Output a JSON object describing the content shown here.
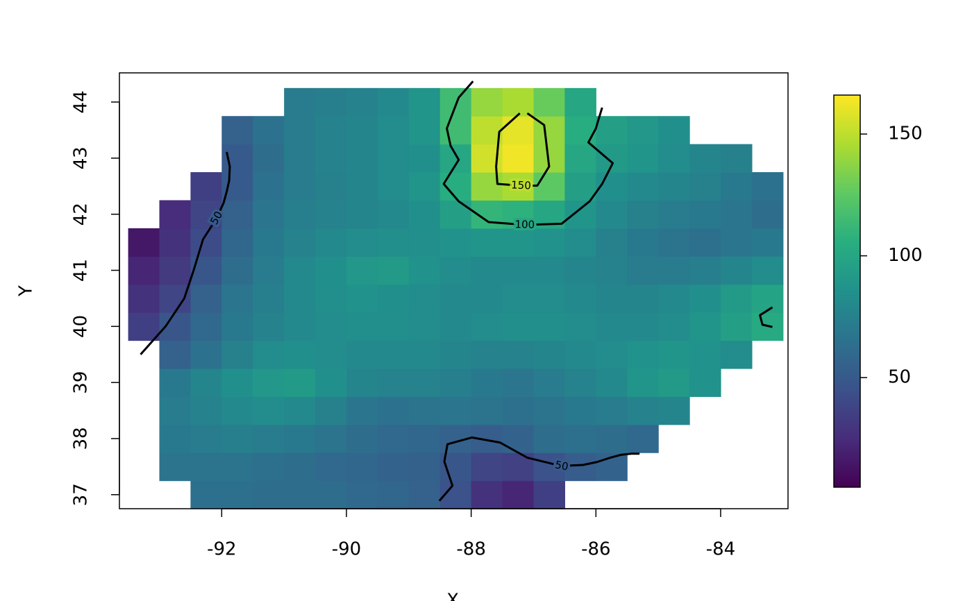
{
  "chart_data": {
    "type": "heatmap",
    "x_label": "X",
    "y_label": "Y",
    "xlim": [
      -93.64,
      -82.92
    ],
    "ylim": [
      36.75,
      44.52
    ],
    "xticks": [
      -92,
      -90,
      -88,
      -86,
      -84
    ],
    "yticks": [
      37,
      38,
      39,
      40,
      41,
      42,
      43,
      44
    ],
    "zlim": [
      5,
      166
    ],
    "zticks": [
      50,
      100,
      150
    ],
    "colorscale": [
      "#440154",
      "#472d7b",
      "#3b528b",
      "#2c728e",
      "#21918c",
      "#28ae80",
      "#5ec962",
      "#addc30",
      "#fde725"
    ],
    "x": [
      -93.25,
      -92.75,
      -92.25,
      -91.75,
      -91.25,
      -90.75,
      -90.25,
      -89.75,
      -89.25,
      -88.75,
      -88.25,
      -87.75,
      -87.25,
      -86.75,
      -86.25,
      -85.75,
      -85.25,
      -84.75,
      -84.25,
      -83.75,
      -83.25
    ],
    "y": [
      37.0,
      37.5,
      38.0,
      38.5,
      39.0,
      39.5,
      40.0,
      40.5,
      41.0,
      41.5,
      42.0,
      42.5,
      43.0,
      43.5,
      44.0
    ],
    "z": [
      [
        null,
        null,
        64,
        64,
        62,
        62,
        62,
        60,
        58,
        55,
        45,
        28,
        22,
        35,
        null,
        null,
        null,
        null,
        null,
        null,
        null
      ],
      [
        null,
        66,
        66,
        66,
        64,
        62,
        60,
        58,
        56,
        54,
        48,
        38,
        36,
        45,
        52,
        56,
        null,
        null,
        null,
        null,
        null
      ],
      [
        null,
        70,
        72,
        74,
        72,
        70,
        66,
        62,
        60,
        58,
        55,
        52,
        56,
        62,
        64,
        62,
        60,
        null,
        null,
        null,
        null
      ],
      [
        null,
        72,
        76,
        80,
        82,
        80,
        75,
        68,
        65,
        66,
        68,
        66,
        64,
        66,
        70,
        72,
        76,
        78,
        null,
        null,
        null
      ],
      [
        null,
        70,
        78,
        85,
        90,
        92,
        85,
        78,
        76,
        76,
        74,
        70,
        68,
        72,
        76,
        80,
        88,
        92,
        86,
        null,
        null
      ],
      [
        null,
        55,
        65,
        75,
        82,
        85,
        82,
        80,
        80,
        80,
        78,
        76,
        76,
        78,
        80,
        82,
        86,
        88,
        86,
        82,
        null
      ],
      [
        35,
        48,
        60,
        70,
        76,
        80,
        82,
        84,
        84,
        82,
        80,
        82,
        84,
        84,
        82,
        80,
        80,
        82,
        88,
        95,
        102
      ],
      [
        28,
        38,
        55,
        68,
        74,
        80,
        84,
        86,
        85,
        82,
        80,
        80,
        82,
        82,
        80,
        78,
        78,
        80,
        85,
        92,
        98
      ],
      [
        22,
        32,
        48,
        62,
        72,
        80,
        85,
        90,
        92,
        86,
        82,
        80,
        80,
        80,
        78,
        76,
        72,
        72,
        74,
        78,
        82
      ],
      [
        15,
        28,
        42,
        58,
        70,
        76,
        80,
        82,
        84,
        84,
        86,
        88,
        88,
        86,
        82,
        75,
        70,
        66,
        64,
        68,
        70
      ],
      [
        null,
        25,
        38,
        55,
        68,
        74,
        76,
        78,
        80,
        85,
        95,
        110,
        108,
        100,
        88,
        80,
        75,
        72,
        70,
        68,
        62
      ],
      [
        null,
        null,
        35,
        50,
        65,
        72,
        75,
        78,
        82,
        88,
        105,
        140,
        145,
        125,
        95,
        85,
        80,
        78,
        75,
        70,
        65
      ],
      [
        null,
        null,
        null,
        50,
        62,
        72,
        76,
        78,
        82,
        85,
        100,
        155,
        163,
        140,
        100,
        92,
        88,
        82,
        78,
        75,
        null
      ],
      [
        null,
        null,
        null,
        55,
        65,
        72,
        76,
        78,
        82,
        88,
        115,
        150,
        160,
        140,
        105,
        95,
        90,
        85,
        null,
        null,
        null
      ],
      [
        null,
        null,
        null,
        null,
        null,
        72,
        74,
        76,
        80,
        88,
        115,
        140,
        145,
        128,
        100,
        null,
        null,
        null,
        null,
        null,
        null
      ]
    ],
    "contours": [
      {
        "level": 50,
        "labeled": true,
        "x": [
          -91.92,
          -91.87,
          -91.88,
          -91.92,
          -91.97,
          -92.08,
          -92.3,
          -92.45,
          -92.6,
          -92.9,
          -93.3
        ],
        "y": [
          43.11,
          42.85,
          42.6,
          42.4,
          42.2,
          41.93,
          41.55,
          41.0,
          40.5,
          40.0,
          39.5
        ]
      },
      {
        "level": 100,
        "labeled": true,
        "x": [
          -87.97,
          -88.2,
          -88.39,
          -88.33,
          -88.2,
          -88.44,
          -88.2,
          -87.72,
          -87.14,
          -86.55,
          -86.1,
          -85.9,
          -85.73,
          -86.12,
          -86.0,
          -85.95,
          -85.9
        ],
        "y": [
          44.37,
          44.08,
          43.53,
          43.22,
          42.97,
          42.54,
          42.23,
          41.86,
          41.81,
          41.83,
          42.23,
          42.54,
          42.91,
          43.28,
          43.53,
          43.72,
          43.9
        ]
      },
      {
        "level": 150,
        "labeled": true,
        "x": [
          -87.22,
          -87.55,
          -87.6,
          -87.58,
          -87.2,
          -86.94,
          -86.75,
          -86.83,
          -87.1
        ],
        "y": [
          43.8,
          43.47,
          42.85,
          42.54,
          42.51,
          42.51,
          42.85,
          43.59,
          43.8
        ]
      },
      {
        "level": 50,
        "labeled": true,
        "x": [
          -88.51,
          -88.3,
          -88.43,
          -88.38,
          -87.99,
          -87.54,
          -87.1,
          -86.55,
          -86.41,
          -86.21,
          -85.99,
          -85.77,
          -85.6,
          -85.43,
          -85.3
        ],
        "y": [
          36.89,
          37.16,
          37.59,
          37.9,
          38.02,
          37.93,
          37.66,
          37.51,
          37.52,
          37.53,
          37.58,
          37.66,
          37.71,
          37.73,
          37.73
        ]
      },
      {
        "level": 100,
        "labeled": false,
        "x": [
          -83.17,
          -83.37,
          -83.33,
          -83.17
        ],
        "y": [
          40.34,
          40.2,
          40.03,
          39.99
        ]
      }
    ]
  }
}
